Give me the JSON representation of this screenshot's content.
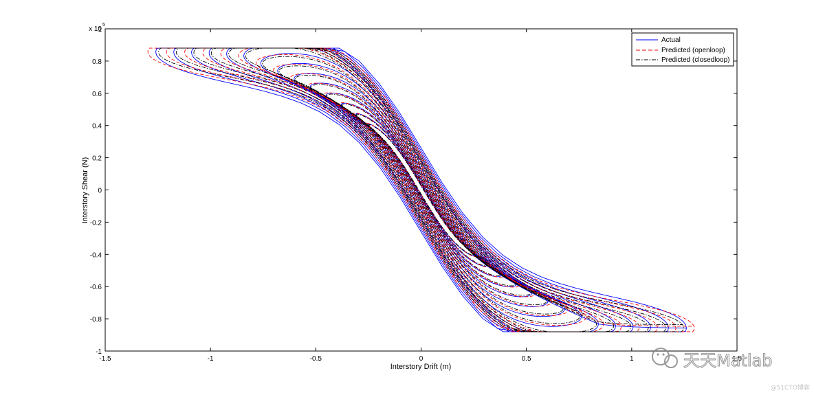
{
  "chart_data": {
    "type": "line",
    "title": "",
    "xlabel": "Interstory Drift (m)",
    "ylabel": "Interstory Shear (N)",
    "y_exponent_label": "x 10",
    "y_exponent_power": "5",
    "xlim": [
      -1.5,
      1.5
    ],
    "ylim": [
      -1,
      1
    ],
    "x_ticks": [
      -1.5,
      -1,
      -0.5,
      0,
      0.5,
      1,
      1.5
    ],
    "x_tick_labels": [
      "-1.5",
      "-1",
      "-0.5",
      "0",
      "0.5",
      "1",
      "1.5"
    ],
    "y_ticks": [
      -1,
      -0.8,
      -0.6,
      -0.4,
      -0.2,
      0,
      0.2,
      0.4,
      0.6,
      0.8,
      1
    ],
    "y_tick_labels": [
      "-1",
      "-0.8",
      "-0.6",
      "-0.4",
      "-0.2",
      "0",
      "0.2",
      "0.4",
      "0.6",
      "0.8",
      "1"
    ],
    "grid": false,
    "legend_position": "top-right",
    "series": [
      {
        "name": "Actual",
        "color": "#0000ff",
        "style": "solid",
        "amp_scale": 1.0,
        "width_scale": 1.12
      },
      {
        "name": "Predicted (openloop)",
        "color": "#ff0000",
        "style": "dashed",
        "amp_scale": 1.03,
        "width_scale": 0.97
      },
      {
        "name": "Predicted (closedloop)",
        "color": "#000000",
        "style": "dashdot",
        "amp_scale": 0.99,
        "width_scale": 0.9
      }
    ],
    "hysteresis": {
      "description": "growing hysteresis loops, drift amplitude increasing with cycle",
      "cycles": 14,
      "min_drift_amplitude": 0.25,
      "max_drift_amplitude": 1.26,
      "max_shear": 0.86,
      "elastic_slope": -2.2
    }
  },
  "watermark": {
    "text": "天天Matlab",
    "small_text": "@51CTO博客"
  }
}
